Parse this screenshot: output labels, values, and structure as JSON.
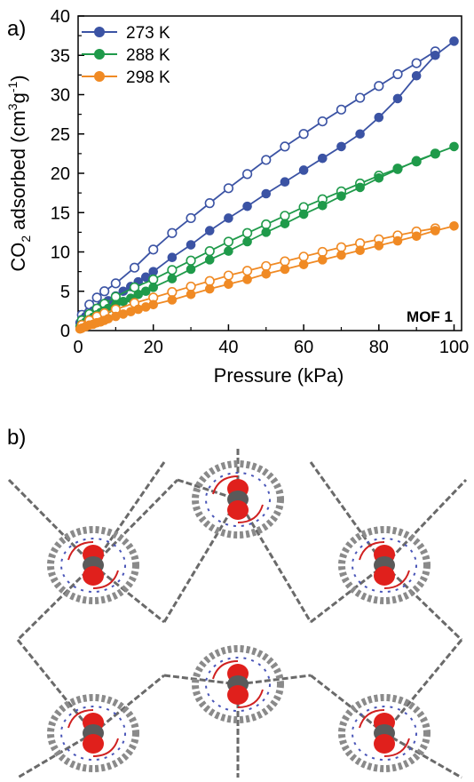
{
  "panels": {
    "a_label": "a)",
    "b_label": "b)"
  },
  "chart_data": {
    "type": "scatter",
    "title": "",
    "xlabel": "Pressure (kPa)",
    "ylabel_main": "CO",
    "ylabel_sub": "2",
    "ylabel_mid": " adsorbed (cm",
    "ylabel_sup1": "3",
    "ylabel_g": "g",
    "ylabel_sup2": "-1",
    "ylabel_end": ")",
    "annotation": "MOF 1",
    "xlim": [
      0,
      102
    ],
    "ylim": [
      0,
      40
    ],
    "xticks": [
      "0",
      "20",
      "40",
      "60",
      "80",
      "100"
    ],
    "xtick_values": [
      0,
      20,
      40,
      60,
      80,
      100
    ],
    "yticks": [
      "0",
      "5",
      "10",
      "15",
      "20",
      "25",
      "30",
      "35",
      "40"
    ],
    "ytick_values": [
      0,
      5,
      10,
      15,
      20,
      25,
      30,
      35,
      40
    ],
    "legend_position": "top-left",
    "grid": false,
    "series": [
      {
        "name": "273 K",
        "color": "#3b53a4",
        "adsorption": {
          "x": [
            0.5,
            1,
            2,
            3,
            4,
            5,
            6,
            7,
            8,
            10,
            12,
            14,
            16,
            18,
            20,
            25,
            30,
            35,
            40,
            45,
            50,
            55,
            60,
            65,
            70,
            75,
            80,
            85,
            90,
            95,
            100
          ],
          "y": [
            1.0,
            1.4,
            1.8,
            2.1,
            2.5,
            2.8,
            3.1,
            3.4,
            3.8,
            4.4,
            5.0,
            5.6,
            6.2,
            6.8,
            7.5,
            9.3,
            10.9,
            12.7,
            14.3,
            15.8,
            17.4,
            18.9,
            20.4,
            21.9,
            23.4,
            25.0,
            27.1,
            29.5,
            32.4,
            35.0,
            36.8
          ]
        },
        "desorption": {
          "x": [
            1,
            3,
            5,
            7,
            10,
            15,
            20,
            25,
            30,
            35,
            40,
            45,
            50,
            55,
            60,
            65,
            70,
            75,
            80,
            85,
            90,
            95
          ],
          "y": [
            2.0,
            3.3,
            4.2,
            5.0,
            6.0,
            8.0,
            10.3,
            12.4,
            14.3,
            16.2,
            18.1,
            19.9,
            21.7,
            23.4,
            25.0,
            26.6,
            28.1,
            29.6,
            31.1,
            32.6,
            34.0,
            35.5
          ]
        }
      },
      {
        "name": "288 K",
        "color": "#1f9a4a",
        "adsorption": {
          "x": [
            0.5,
            1,
            2,
            3,
            4,
            5,
            6,
            7,
            8,
            10,
            12,
            14,
            16,
            18,
            20,
            25,
            30,
            35,
            40,
            45,
            50,
            55,
            60,
            65,
            70,
            75,
            80,
            85,
            90,
            95,
            100
          ],
          "y": [
            0.5,
            0.8,
            1.1,
            1.4,
            1.7,
            2.0,
            2.3,
            2.5,
            2.8,
            3.3,
            3.7,
            4.1,
            4.6,
            5.0,
            5.5,
            6.6,
            7.8,
            9.0,
            10.1,
            11.3,
            12.5,
            13.6,
            14.8,
            15.9,
            17.1,
            18.2,
            19.4,
            20.5,
            21.6,
            22.5,
            23.4
          ]
        },
        "desorption": {
          "x": [
            1,
            3,
            5,
            7,
            10,
            15,
            20,
            25,
            30,
            35,
            40,
            45,
            50,
            55,
            60,
            65,
            70,
            75,
            80,
            85,
            90,
            95
          ],
          "y": [
            1.3,
            2.1,
            2.8,
            3.4,
            4.3,
            5.5,
            6.5,
            7.7,
            8.9,
            10.1,
            11.3,
            12.4,
            13.5,
            14.6,
            15.7,
            16.7,
            17.7,
            18.7,
            19.7,
            20.6,
            21.5,
            22.5
          ]
        }
      },
      {
        "name": "298 K",
        "color": "#f08a24",
        "adsorption": {
          "x": [
            0.5,
            1,
            2,
            3,
            4,
            5,
            6,
            7,
            8,
            10,
            12,
            14,
            16,
            18,
            20,
            25,
            30,
            35,
            40,
            45,
            50,
            55,
            60,
            65,
            70,
            75,
            80,
            85,
            90,
            95,
            100
          ],
          "y": [
            0.2,
            0.3,
            0.5,
            0.7,
            0.8,
            1.0,
            1.1,
            1.3,
            1.5,
            1.8,
            2.1,
            2.4,
            2.7,
            3.0,
            3.3,
            3.9,
            4.6,
            5.3,
            5.9,
            6.5,
            7.2,
            7.8,
            8.4,
            9.0,
            9.6,
            10.2,
            10.8,
            11.4,
            12.0,
            12.7,
            13.3
          ]
        },
        "desorption": {
          "x": [
            1,
            3,
            5,
            7,
            10,
            15,
            20,
            25,
            30,
            35,
            40,
            45,
            50,
            55,
            60,
            65,
            70,
            75,
            80,
            85,
            90,
            95
          ],
          "y": [
            0.7,
            1.3,
            1.8,
            2.2,
            2.7,
            3.5,
            4.2,
            4.9,
            5.6,
            6.3,
            7.0,
            7.6,
            8.2,
            8.8,
            9.4,
            10.0,
            10.6,
            11.1,
            11.6,
            12.1,
            12.6,
            13.0
          ]
        }
      }
    ]
  }
}
